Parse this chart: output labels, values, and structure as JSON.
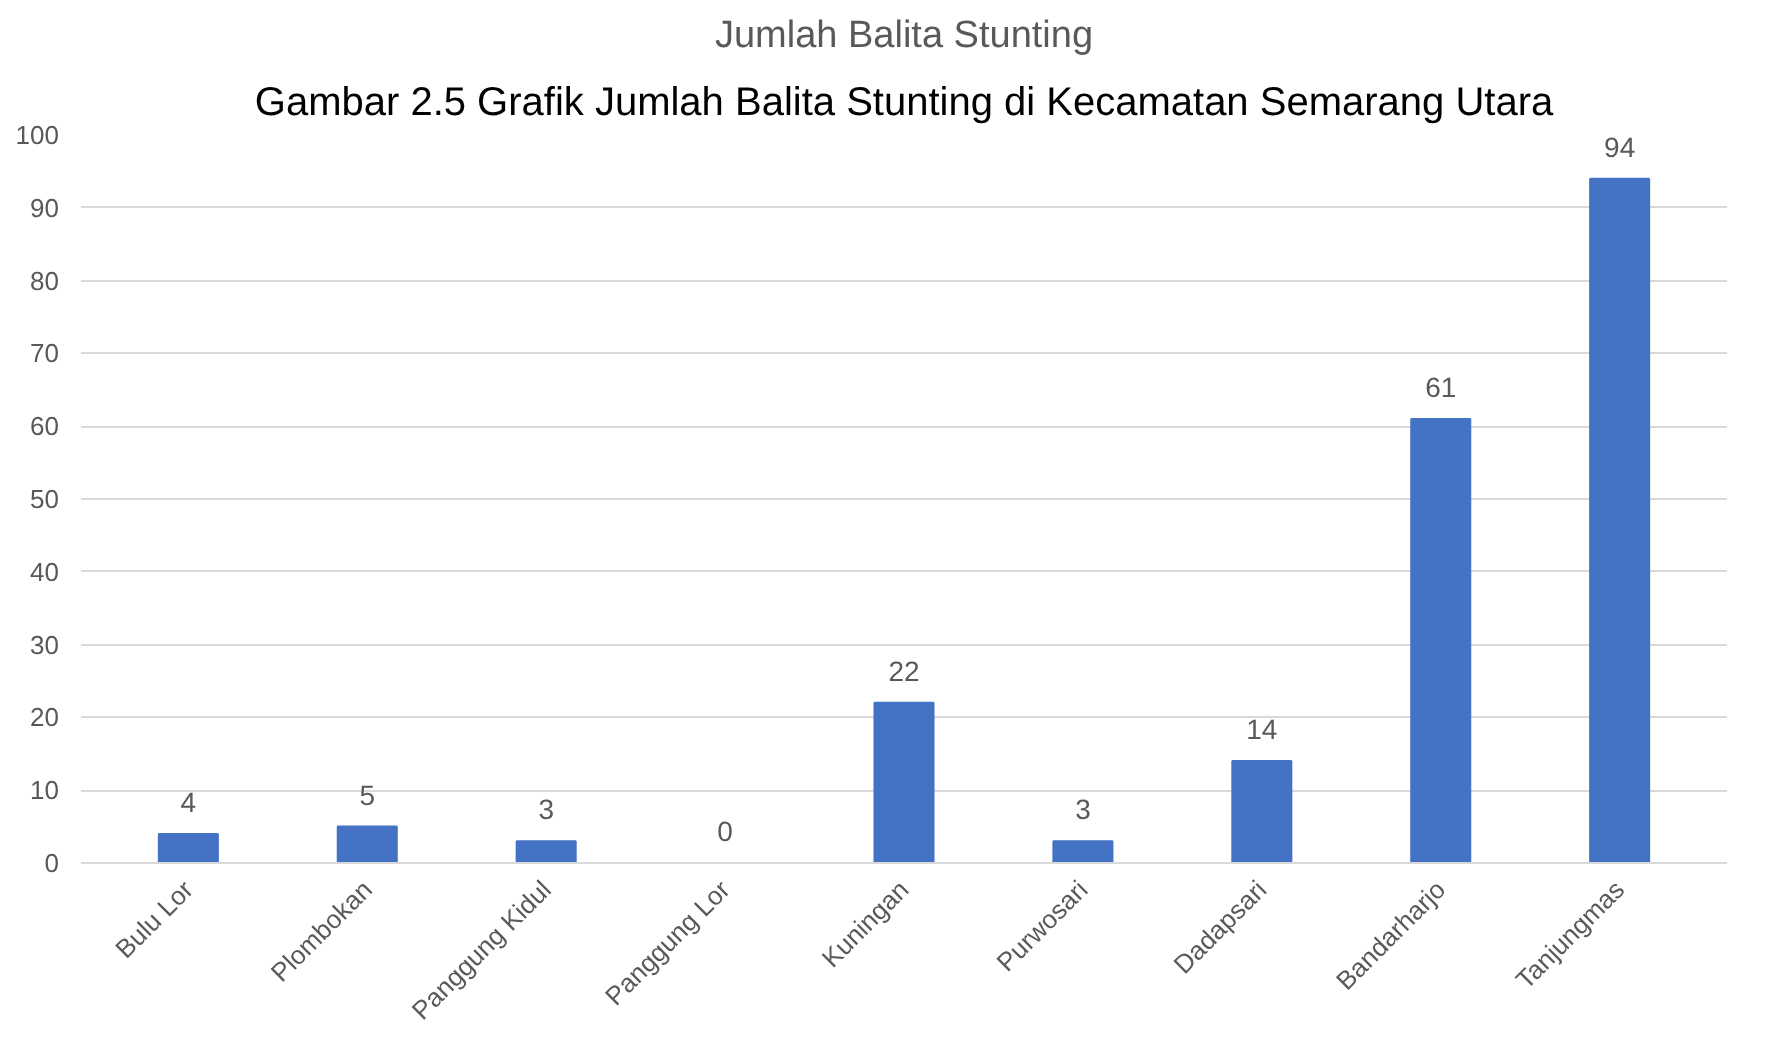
{
  "chart_data": {
    "type": "bar",
    "title": "Jumlah Balita Stunting",
    "annotations": [
      "Gambar 2.5 Grafik Jumlah Balita Stunting di Kecamatan Semarang Utara"
    ],
    "categories": [
      "Bulu Lor",
      "Plombokan",
      "Panggung Kidul",
      "Panggung Lor",
      "Kuningan",
      "Purwosari",
      "Dadapsari",
      "Bandarharjo",
      "Tanjungmas"
    ],
    "values": [
      4,
      5,
      3,
      0,
      22,
      3,
      14,
      61,
      94
    ],
    "color": "#4472c4",
    "ylim": [
      0,
      100
    ],
    "yticks": [
      0,
      10,
      20,
      30,
      40,
      50,
      60,
      70,
      80,
      90,
      100
    ],
    "grid": "y",
    "data_labels": true
  }
}
